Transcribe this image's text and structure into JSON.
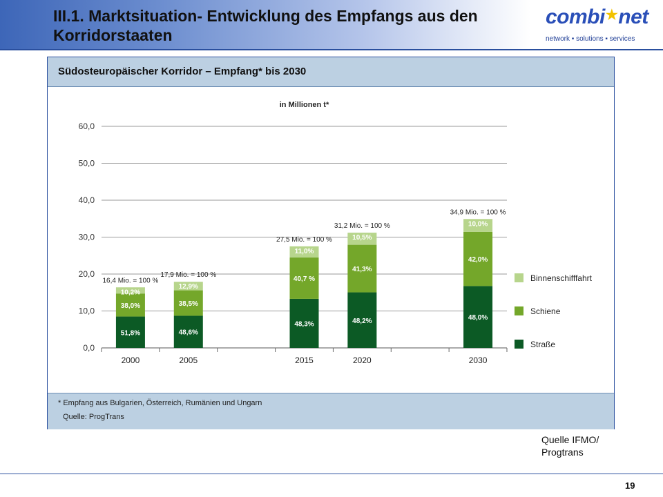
{
  "slide": {
    "title": "III.1. Marktsituation- Entwicklung des Empfangs aus den Korridorstaaten",
    "page_number": "19",
    "source_note": "Quelle IFMO/ Progtrans"
  },
  "logo": {
    "word_start": "combi",
    "word_end": "net",
    "tagline": "network ▪ solutions ▪ services",
    "star_color": "#f2c200",
    "word_color": "#2a4fb8"
  },
  "panel": {
    "title": "Südosteuropäischer Korridor – Empfang* bis 2030",
    "footnote": "* Empfang aus Bulgarien, Österreich, Rumänien und Ungarn",
    "source": "Quelle: ProgTrans"
  },
  "chart_data": {
    "type": "bar",
    "stacked": true,
    "title": "in Millionen t*",
    "xlabel": "",
    "ylabel": "",
    "ylim": [
      0,
      60
    ],
    "yticks": [
      0,
      10,
      20,
      30,
      40,
      50,
      60
    ],
    "ytick_labels": [
      "0,0",
      "10,0",
      "20,0",
      "30,0",
      "40,0",
      "50,0",
      "60,0"
    ],
    "grid": true,
    "legend_position": "right",
    "categories": [
      "2000",
      "2005",
      "2015",
      "2020",
      "2030"
    ],
    "slots": [
      0,
      1,
      3,
      4,
      6
    ],
    "totals": [
      16.4,
      17.9,
      27.5,
      31.2,
      34.9
    ],
    "total_labels": [
      "16,4 Mio. = 100 %",
      "17,9 Mio. = 100 %",
      "27,5 Mio. = 100 %",
      "31,2 Mio. = 100 %",
      "34,9 Mio. = 100 %"
    ],
    "series": [
      {
        "name": "Straße",
        "color": "#0c5a25",
        "percents": [
          51.8,
          48.6,
          48.3,
          48.2,
          48.0
        ],
        "labels": [
          "51,8%",
          "48,6%",
          "48,3%",
          "48,2%",
          "48,0%"
        ]
      },
      {
        "name": "Schiene",
        "color": "#74a72a",
        "percents": [
          38.0,
          38.5,
          40.7,
          41.3,
          42.0
        ],
        "labels": [
          "38,0%",
          "38,5%",
          "40,7 %",
          "41,3%",
          "42,0%"
        ]
      },
      {
        "name": "Binnenschifffahrt",
        "color": "#b7d58c",
        "percents": [
          10.2,
          12.9,
          11.0,
          10.5,
          10.0
        ],
        "labels": [
          "10,2%",
          "12,9%",
          "11,0%",
          "10,5%",
          "10,0%"
        ]
      }
    ],
    "legend": [
      "Binnenschifffahrt",
      "Schiene",
      "Straße"
    ]
  }
}
